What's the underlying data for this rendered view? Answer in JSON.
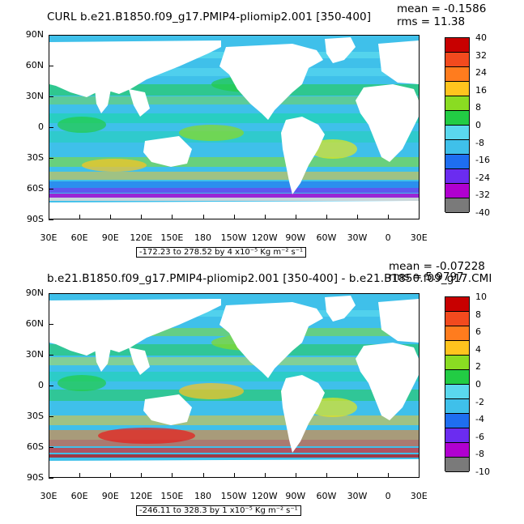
{
  "colors": {
    "ocean_base": "#3fc0ea",
    "land": "#ffffff",
    "scale": [
      "#ffffff",
      "#7a7a7a",
      "#d8d8d8",
      "#b000d0",
      "#6b2cf0",
      "#1b1bf0",
      "#1e6ef0",
      "#1fa0f0",
      "#3fc0ea",
      "#5ad8ee",
      "#1fd4b0",
      "#22cc44",
      "#8adc22",
      "#e6e61e",
      "#ffc41e",
      "#ffa41e",
      "#ff7c1e",
      "#f24a1e",
      "#e81a1a",
      "#c80000"
    ]
  },
  "axes": {
    "lat_labels": [
      "90N",
      "60N",
      "30N",
      "0",
      "30S",
      "60S",
      "90S"
    ],
    "lon_labels": [
      "30E",
      "60E",
      "90E",
      "120E",
      "150E",
      "180",
      "150W",
      "120W",
      "90W",
      "60W",
      "30W",
      "0",
      "30E"
    ]
  },
  "panels": [
    {
      "title": "CURL  b.e21.B1850.f09_g17.PMIP4-pliomip2.001  [350-400]",
      "mean_label": "mean = -0.1586",
      "rms_label": "rms = 11.38",
      "range_label": "-172.23 to 278.52 by 4 x10⁻⁵ Kg m⁻² s⁻¹",
      "colorbar_labels": [
        "40",
        "32",
        "24",
        "16",
        "8",
        "0",
        "-8",
        "-16",
        "-24",
        "-32",
        "-40"
      ]
    },
    {
      "title": "b.e21.B1850.f09_g17.PMIP4-pliomip2.001  [350-400]  -  b.e21.B1850.f09_g17.CMI",
      "mean_label": "mean = -0.07228",
      "rms_label": "rms = 5.9797",
      "range_label": "-246.11 to 328.3 by 1 x10⁻⁵ Kg m⁻² s⁻¹",
      "colorbar_labels": [
        "10",
        "8",
        "6",
        "4",
        "2",
        "0",
        "-2",
        "-4",
        "-6",
        "-8",
        "-10"
      ]
    }
  ],
  "colorbar_colors": [
    "#c80000",
    "#e81a1a",
    "#f24a1e",
    "#ff7c1e",
    "#ffa41e",
    "#ffc41e",
    "#e6e61e",
    "#8adc22",
    "#22cc44",
    "#1fd4b0",
    "#5ad8ee",
    "#3fc0ea",
    "#1fa0f0",
    "#1e6ef0",
    "#1b1bf0",
    "#6b2cf0",
    "#b000d0",
    "#d8d8d8",
    "#7a7a7a"
  ]
}
